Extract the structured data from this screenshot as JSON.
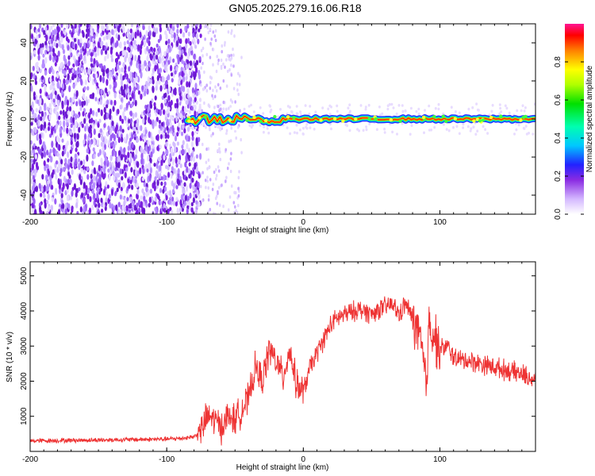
{
  "title": "GN05.2025.279.16.06.R18",
  "chart_data": [
    {
      "type": "heatmap",
      "title": "GN05.2025.279.16.06.R18",
      "xlabel": "Height of straight line (km)",
      "ylabel": "Frequency (Hz)",
      "xlim": [
        -200,
        170
      ],
      "ylim": [
        -50,
        50
      ],
      "x_ticks": [
        -200,
        -100,
        0,
        100
      ],
      "x_tick_labels": [
        "-200",
        "-100",
        "0",
        "100"
      ],
      "y_ticks": [
        -40,
        -20,
        0,
        20,
        40
      ],
      "y_tick_labels": [
        "-40",
        "-20",
        "0",
        "20",
        "40"
      ],
      "colorbar": {
        "label": "Normalized spectral amplitude",
        "range": [
          0,
          1
        ],
        "ticks": [
          0,
          0.2,
          0.4,
          0.6,
          0.8
        ],
        "tick_labels": [
          "0.0",
          "0.2",
          "0.4",
          "0.6",
          "0.8"
        ]
      },
      "features": {
        "noise_region_x": [
          -200,
          -75
        ],
        "sparse_noise_x": [
          -75,
          -45
        ],
        "signal_start_x": -85,
        "signal_frequency_hz": 0,
        "signal_peak_amplitude": 0.95
      }
    },
    {
      "type": "line",
      "xlabel": "Height of straight line (km)",
      "ylabel": "SNR (10 * v/v)",
      "xlim": [
        -200,
        170
      ],
      "ylim": [
        0,
        5400
      ],
      "x_ticks": [
        -200,
        -100,
        0,
        100
      ],
      "x_tick_labels": [
        "-200",
        "-100",
        "0",
        "100"
      ],
      "y_ticks": [
        1000,
        2000,
        3000,
        4000,
        5000
      ],
      "y_tick_labels": [
        "1000",
        "2000",
        "3000",
        "4000",
        "5000"
      ],
      "series": [
        {
          "name": "SNR",
          "color": "#ee3333",
          "x": [
            -200,
            -180,
            -160,
            -140,
            -120,
            -100,
            -90,
            -80,
            -75,
            -70,
            -65,
            -60,
            -55,
            -50,
            -45,
            -40,
            -35,
            -30,
            -25,
            -20,
            -15,
            -10,
            -5,
            0,
            5,
            10,
            15,
            20,
            25,
            30,
            35,
            40,
            45,
            50,
            55,
            60,
            65,
            70,
            75,
            80,
            85,
            88,
            90,
            92,
            95,
            100,
            105,
            110,
            115,
            120,
            125,
            130,
            135,
            140,
            145,
            150,
            155,
            160,
            165,
            170
          ],
          "values": [
            300,
            310,
            320,
            330,
            340,
            350,
            370,
            420,
            600,
            1000,
            900,
            700,
            1000,
            900,
            1200,
            1500,
            2400,
            2000,
            2900,
            2600,
            2100,
            2900,
            1900,
            1700,
            2400,
            2800,
            3200,
            3600,
            3800,
            3900,
            3950,
            4050,
            4000,
            3900,
            4050,
            4100,
            4200,
            3900,
            4200,
            3800,
            3300,
            2500,
            1800,
            3700,
            3400,
            2900,
            3000,
            2700,
            2600,
            2600,
            2550,
            2500,
            2450,
            2400,
            2350,
            2300,
            2250,
            2200,
            2100,
            2050
          ]
        }
      ]
    }
  ]
}
